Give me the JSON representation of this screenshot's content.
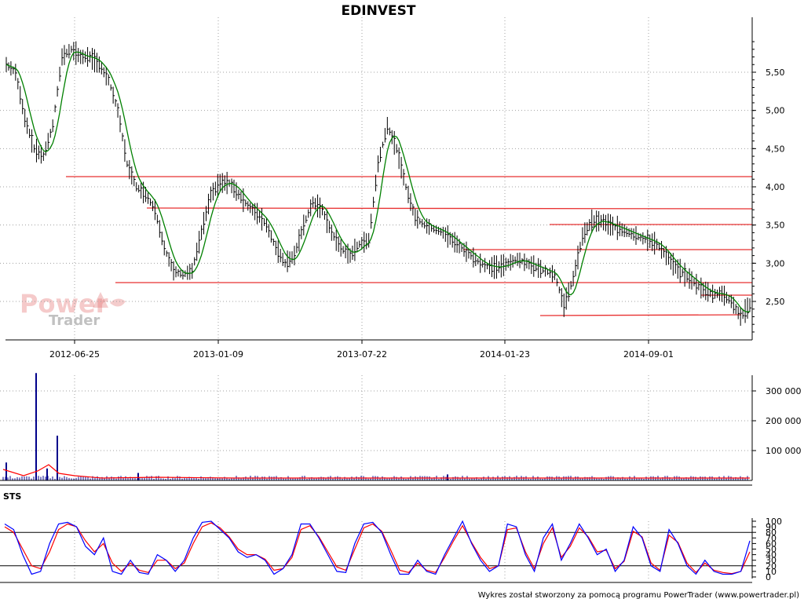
{
  "title": "EDINVEST",
  "footer": "Wykres został stworzony za pomocą programu PowerTrader (www.powertrader.pl)",
  "watermark": {
    "line1": "Power",
    "line2": "Trader"
  },
  "sts_label": "STS",
  "colors": {
    "price": "#000000",
    "ma": "#008000",
    "levels": "#e83030",
    "volume": "#00008b",
    "volume_avg": "#ff0000",
    "sts_k": "#0000ff",
    "sts_d": "#ff0000",
    "grid": "#a0a0a0"
  },
  "chart_data": [
    {
      "type": "line",
      "name": "price",
      "title": "EDINVEST",
      "x_ticks": [
        "2012-06-25",
        "2013-01-09",
        "2013-07-22",
        "2014-01-23",
        "2014-09-01"
      ],
      "y_ticks": [
        "2,50",
        "3,00",
        "3,50",
        "4,00",
        "4,50",
        "5,00",
        "5,50"
      ],
      "ylim": [
        2.0,
        6.0
      ],
      "grid": true,
      "series": [
        {
          "values": [
            5.6,
            5.5,
            4.9,
            4.5,
            4.4,
            4.8,
            5.7,
            5.8,
            5.7,
            5.7,
            5.6,
            5.4,
            5.0,
            4.3,
            4.0,
            3.9,
            3.7,
            3.2,
            2.9,
            2.85,
            2.9,
            3.4,
            3.9,
            4.05,
            4.05,
            3.9,
            3.75,
            3.65,
            3.5,
            3.2,
            3.0,
            3.1,
            3.5,
            3.8,
            3.7,
            3.4,
            3.2,
            3.1,
            3.25,
            3.3,
            4.3,
            4.8,
            4.5,
            4.0,
            3.6,
            3.5,
            3.45,
            3.4,
            3.3,
            3.2,
            3.1,
            3.0,
            2.95,
            2.95,
            3.0,
            3.05,
            3.0,
            2.95,
            2.9,
            2.85,
            2.45,
            2.8,
            3.35,
            3.55,
            3.55,
            3.5,
            3.45,
            3.4,
            3.35,
            3.3,
            3.25,
            3.1,
            2.95,
            2.85,
            2.75,
            2.65,
            2.6,
            2.6,
            2.5,
            2.3,
            2.45
          ]
        }
      ]
    },
    {
      "type": "bar",
      "name": "volume",
      "y_ticks": [
        "100 000",
        "200 000",
        "300 000"
      ],
      "ylim": [
        0,
        360000
      ],
      "spikes": [
        360000,
        150000,
        60000,
        40000,
        25000,
        20000
      ]
    },
    {
      "type": "line",
      "name": "STS",
      "y_ticks": [
        "0",
        "10",
        "20",
        "30",
        "40",
        "50",
        "60",
        "70",
        "80",
        "90",
        "100"
      ],
      "ylim": [
        0,
        100
      ],
      "levels": [
        20,
        80
      ],
      "series": [
        {
          "name": "%K",
          "values": [
            95,
            85,
            40,
            5,
            10,
            60,
            95,
            98,
            90,
            55,
            40,
            70,
            10,
            5,
            30,
            8,
            5,
            40,
            30,
            10,
            30,
            70,
            98,
            100,
            85,
            70,
            45,
            35,
            40,
            30,
            5,
            15,
            40,
            95,
            95,
            70,
            40,
            10,
            8,
            60,
            95,
            98,
            80,
            40,
            5,
            5,
            30,
            10,
            5,
            40,
            70,
            100,
            60,
            30,
            10,
            20,
            95,
            90,
            40,
            10,
            70,
            95,
            30,
            60,
            95,
            70,
            40,
            50,
            10,
            30,
            90,
            70,
            20,
            10,
            85,
            60,
            20,
            5,
            30,
            10,
            5,
            5,
            10,
            65
          ]
        },
        {
          "name": "%D",
          "values": [
            90,
            80,
            50,
            20,
            15,
            45,
            85,
            95,
            90,
            65,
            45,
            60,
            25,
            10,
            25,
            12,
            8,
            30,
            30,
            15,
            25,
            60,
            90,
            97,
            88,
            72,
            50,
            40,
            40,
            32,
            12,
            15,
            35,
            85,
            92,
            72,
            45,
            18,
            12,
            50,
            88,
            95,
            82,
            48,
            12,
            8,
            25,
            12,
            8,
            35,
            65,
            92,
            62,
            35,
            15,
            20,
            85,
            88,
            45,
            15,
            60,
            88,
            35,
            55,
            88,
            72,
            45,
            48,
            15,
            28,
            82,
            72,
            25,
            12,
            75,
            62,
            25,
            8,
            25,
            12,
            8,
            6,
            10,
            45
          ]
        }
      ]
    }
  ]
}
